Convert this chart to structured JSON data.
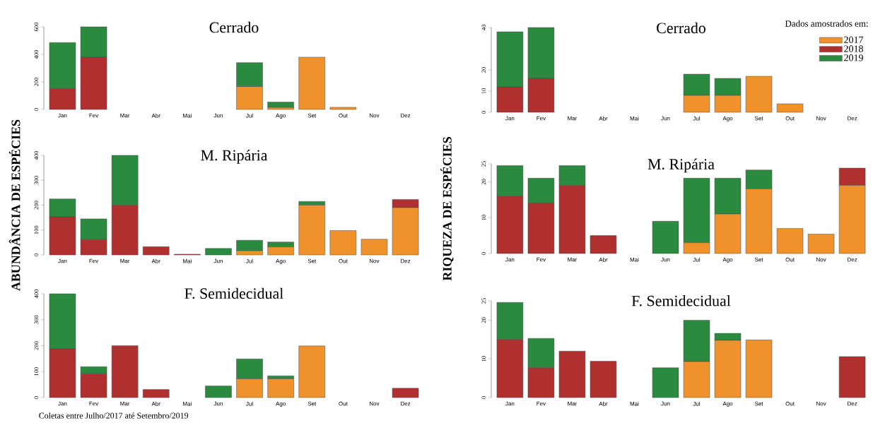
{
  "chart_data": [
    {
      "type": "bar",
      "stacked": true,
      "title": "Cerrado",
      "categories": [
        "Jan",
        "Fev",
        "Mar",
        "Abr",
        "Mai",
        "Jun",
        "Jul",
        "Ago",
        "Set",
        "Out",
        "Nov",
        "Dez"
      ],
      "ylim": [
        0,
        600
      ],
      "yticks": [
        0,
        200,
        400,
        600
      ],
      "series": [
        {
          "color": "#f0922c",
          "values": [
            0,
            0,
            0,
            0,
            0,
            0,
            166,
            14,
            380,
            16,
            0,
            0
          ]
        },
        {
          "color": "#b03030",
          "values": [
            152,
            380,
            0,
            0,
            0,
            0,
            0,
            0,
            0,
            0,
            0,
            0
          ]
        },
        {
          "color": "#2a8a3f",
          "values": [
            334,
            220,
            0,
            0,
            0,
            0,
            174,
            40,
            0,
            0,
            0,
            0
          ]
        }
      ]
    },
    {
      "type": "bar",
      "stacked": true,
      "title": "M. Ripária",
      "ylabel": "ABUNDÂNCIA DE ESPÉCIES",
      "categories": [
        "Jan",
        "Fev",
        "Mar",
        "Abr",
        "Mai",
        "Jun",
        "Jul",
        "Ago",
        "Set",
        "Out",
        "Nov",
        "Dez"
      ],
      "ylim": [
        0,
        400
      ],
      "yticks": [
        0,
        100,
        200,
        300,
        400
      ],
      "series": [
        {
          "color": "#f0922c",
          "values": [
            0,
            0,
            0,
            0,
            0,
            0,
            17,
            32,
            200,
            98,
            63,
            190
          ]
        },
        {
          "color": "#b03030",
          "values": [
            153,
            62,
            200,
            33,
            3,
            0,
            0,
            0,
            0,
            0,
            0,
            33
          ]
        },
        {
          "color": "#2a8a3f",
          "values": [
            72,
            83,
            200,
            0,
            0,
            26,
            42,
            20,
            15,
            0,
            0,
            0
          ]
        }
      ]
    },
    {
      "type": "bar",
      "stacked": true,
      "title": "F. Semidecidual",
      "annotations": [
        "Coletas entre Julho/2017 até Setembro/2019"
      ],
      "categories": [
        "Jan",
        "Fev",
        "Mar",
        "Abr",
        "Mai",
        "Jun",
        "Jul",
        "Ago",
        "Set",
        "Out",
        "Nov",
        "Dez"
      ],
      "ylim": [
        0,
        400
      ],
      "yticks": [
        0,
        100,
        200,
        300,
        400
      ],
      "series": [
        {
          "color": "#f0922c",
          "values": [
            0,
            0,
            0,
            0,
            0,
            0,
            72,
            72,
            199,
            0,
            0,
            0
          ]
        },
        {
          "color": "#b03030",
          "values": [
            188,
            92,
            200,
            31,
            0,
            0,
            0,
            0,
            0,
            0,
            0,
            36
          ]
        },
        {
          "color": "#2a8a3f",
          "values": [
            212,
            27,
            0,
            0,
            0,
            45,
            77,
            12,
            0,
            0,
            0,
            0
          ]
        }
      ]
    },
    {
      "type": "bar",
      "stacked": true,
      "title": "Cerrado",
      "legend": "top right",
      "legend_title": "Dados amostrados em:",
      "categories": [
        "Jan",
        "Fev",
        "Mar",
        "Abr",
        "Mai",
        "Jun",
        "Jul",
        "Ago",
        "Set",
        "Out",
        "Nov",
        "Dez"
      ],
      "ylim": [
        0,
        40
      ],
      "yticks": [
        0,
        10,
        20,
        40
      ],
      "series": [
        {
          "name": "2017",
          "color": "#f0922c",
          "values": [
            0,
            0,
            0,
            0,
            0,
            0,
            8,
            8,
            17,
            4,
            0,
            0
          ]
        },
        {
          "name": "2018",
          "color": "#b03030",
          "values": [
            12,
            16,
            0,
            0,
            0,
            0,
            0,
            0,
            0,
            0,
            0,
            0
          ]
        },
        {
          "name": "2019",
          "color": "#2a8a3f",
          "values": [
            26,
            24,
            0,
            0,
            0,
            0,
            10,
            8,
            0,
            0,
            0,
            0
          ]
        }
      ]
    },
    {
      "type": "bar",
      "stacked": true,
      "title": "M. Ripária",
      "ylabel": "RIQUEZA DE ESPÉCIES",
      "categories": [
        "Jan",
        "Fev",
        "Mar",
        "Abr",
        "Mai",
        "Jun",
        "Jul",
        "Ago",
        "Set",
        "Out",
        "Nov",
        "Dez"
      ],
      "ylim": [
        0,
        25
      ],
      "yticks": [
        0,
        10,
        20,
        25
      ],
      "series": [
        {
          "color": "#f0922c",
          "values": [
            0,
            0,
            0,
            0,
            0,
            0,
            3,
            11,
            18,
            7,
            5.4,
            19
          ]
        },
        {
          "color": "#b03030",
          "values": [
            16,
            14,
            19,
            5,
            0,
            0,
            0,
            0,
            0,
            0,
            0,
            4.8
          ]
        },
        {
          "color": "#2a8a3f",
          "values": [
            8.5,
            7,
            5.5,
            0,
            0,
            9,
            18,
            10,
            5.3,
            0,
            0,
            0
          ]
        }
      ]
    },
    {
      "type": "bar",
      "stacked": true,
      "title": "F. Semidecidual",
      "categories": [
        "Jan",
        "Fev",
        "Mar",
        "Abr",
        "Mai",
        "Jun",
        "Jul",
        "Ago",
        "Set",
        "Out",
        "Nov",
        "Dez"
      ],
      "ylim": [
        0,
        25
      ],
      "yticks": [
        0,
        10,
        20,
        25
      ],
      "series": [
        {
          "color": "#f0922c",
          "values": [
            0,
            0,
            0,
            0,
            0,
            0,
            9.3,
            14.8,
            14.9,
            0,
            0,
            0
          ]
        },
        {
          "color": "#b03030",
          "values": [
            15,
            7.7,
            12,
            9.4,
            0,
            0,
            0,
            0,
            0,
            0,
            0,
            10.6
          ]
        },
        {
          "color": "#2a8a3f",
          "values": [
            9.6,
            7.6,
            0,
            0,
            0,
            7.7,
            10.7,
            1.8,
            0,
            0,
            0,
            0
          ]
        }
      ]
    }
  ]
}
